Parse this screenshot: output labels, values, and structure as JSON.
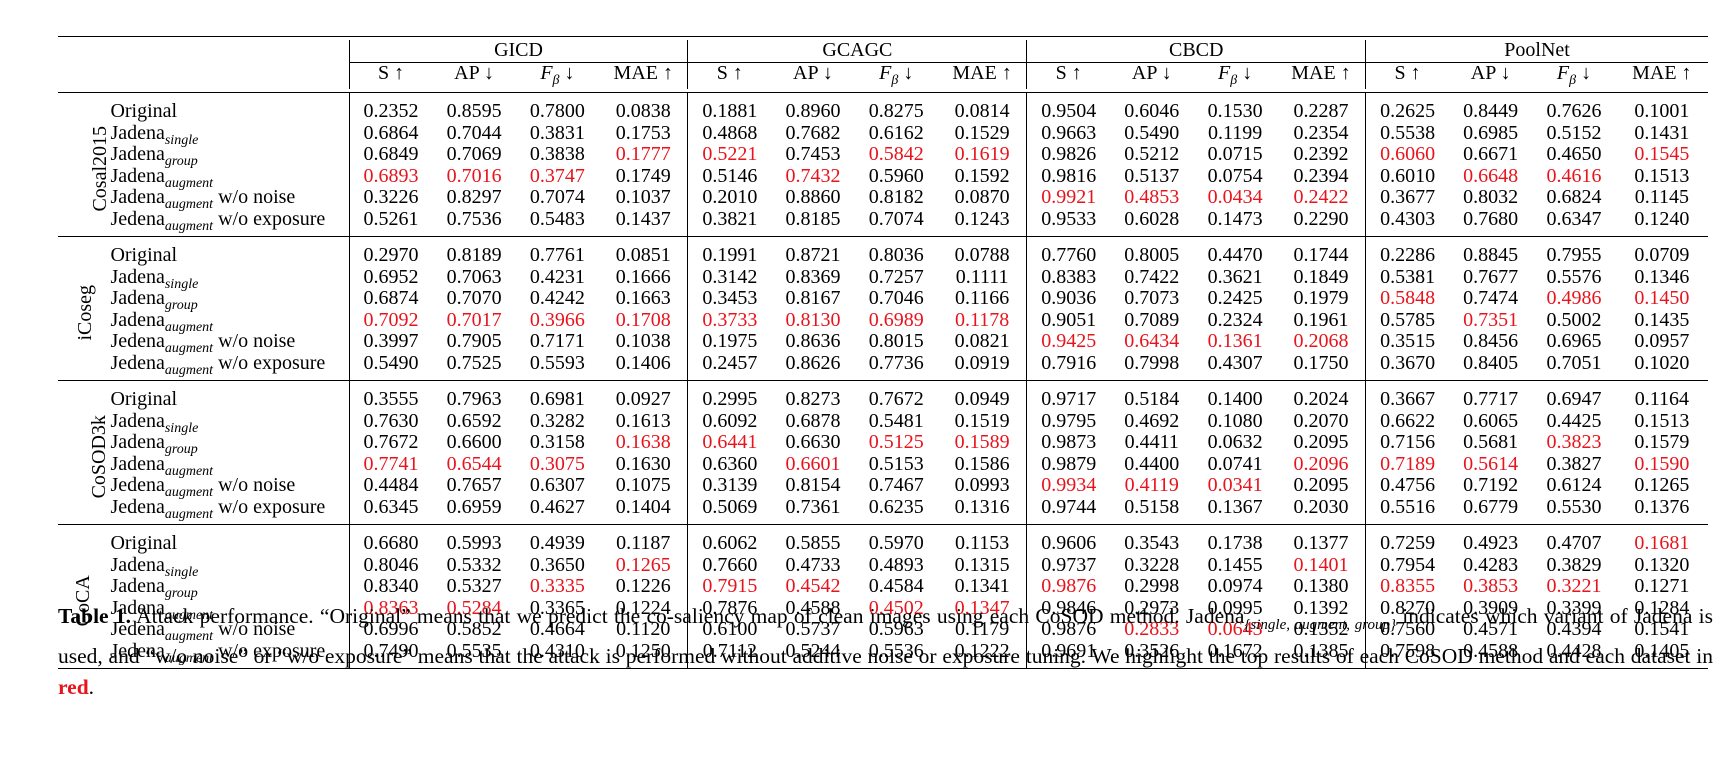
{
  "methods": [
    "GICD",
    "GCAGC",
    "CBCD",
    "PoolNet"
  ],
  "metrics": [
    {
      "name": "S",
      "arrow": "↑"
    },
    {
      "name": "AP",
      "arrow": "↓"
    },
    {
      "name": "F",
      "sub": "β",
      "arrow": "↓"
    },
    {
      "name": "MAE",
      "arrow": "↑"
    }
  ],
  "datasets": [
    {
      "name": "Cosal2015",
      "rows": [
        {
          "base": "Original",
          "sub": "",
          "suffix": "",
          "values": [
            "0.2352",
            "0.8595",
            "0.7800",
            "0.0838",
            "0.1881",
            "0.8960",
            "0.8275",
            "0.0814",
            "0.9504",
            "0.6046",
            "0.1530",
            "0.2287",
            "0.2625",
            "0.8449",
            "0.7626",
            "0.1001"
          ],
          "best": []
        },
        {
          "base": "Jadena",
          "sub": "single",
          "suffix": "",
          "values": [
            "0.6864",
            "0.7044",
            "0.3831",
            "0.1753",
            "0.4868",
            "0.7682",
            "0.6162",
            "0.1529",
            "0.9663",
            "0.5490",
            "0.1199",
            "0.2354",
            "0.5538",
            "0.6985",
            "0.5152",
            "0.1431"
          ],
          "best": []
        },
        {
          "base": "Jadena",
          "sub": "group",
          "suffix": "",
          "values": [
            "0.6849",
            "0.7069",
            "0.3838",
            "0.1777",
            "0.5221",
            "0.7453",
            "0.5842",
            "0.1619",
            "0.9826",
            "0.5212",
            "0.0715",
            "0.2392",
            "0.6060",
            "0.6671",
            "0.4650",
            "0.1545"
          ],
          "best": [
            3,
            4,
            6,
            7,
            12,
            15
          ]
        },
        {
          "base": "Jadena",
          "sub": "augment",
          "suffix": "",
          "values": [
            "0.6893",
            "0.7016",
            "0.3747",
            "0.1749",
            "0.5146",
            "0.7432",
            "0.5960",
            "0.1592",
            "0.9816",
            "0.5137",
            "0.0754",
            "0.2394",
            "0.6010",
            "0.6648",
            "0.4616",
            "0.1513"
          ],
          "best": [
            0,
            1,
            2,
            5,
            13,
            14
          ]
        },
        {
          "base": "Jadena",
          "sub": "augment",
          "suffix": " w/o noise",
          "values": [
            "0.3226",
            "0.8297",
            "0.7074",
            "0.1037",
            "0.2010",
            "0.8860",
            "0.8182",
            "0.0870",
            "0.9921",
            "0.4853",
            "0.0434",
            "0.2422",
            "0.3677",
            "0.8032",
            "0.6824",
            "0.1145"
          ],
          "best": [
            8,
            9,
            10,
            11
          ]
        },
        {
          "base": "Jedena",
          "sub": "augment",
          "suffix": " w/o exposure",
          "values": [
            "0.5261",
            "0.7536",
            "0.5483",
            "0.1437",
            "0.3821",
            "0.8185",
            "0.7074",
            "0.1243",
            "0.9533",
            "0.6028",
            "0.1473",
            "0.2290",
            "0.4303",
            "0.7680",
            "0.6347",
            "0.1240"
          ],
          "best": []
        }
      ]
    },
    {
      "name": "iCoseg",
      "rows": [
        {
          "base": "Original",
          "sub": "",
          "suffix": "",
          "values": [
            "0.2970",
            "0.8189",
            "0.7761",
            "0.0851",
            "0.1991",
            "0.8721",
            "0.8036",
            "0.0788",
            "0.7760",
            "0.8005",
            "0.4470",
            "0.1744",
            "0.2286",
            "0.8845",
            "0.7955",
            "0.0709"
          ],
          "best": []
        },
        {
          "base": "Jadena",
          "sub": "single",
          "suffix": "",
          "values": [
            "0.6952",
            "0.7063",
            "0.4231",
            "0.1666",
            "0.3142",
            "0.8369",
            "0.7257",
            "0.1111",
            "0.8383",
            "0.7422",
            "0.3621",
            "0.1849",
            "0.5381",
            "0.7677",
            "0.5576",
            "0.1346"
          ],
          "best": []
        },
        {
          "base": "Jadena",
          "sub": "group",
          "suffix": "",
          "values": [
            "0.6874",
            "0.7070",
            "0.4242",
            "0.1663",
            "0.3453",
            "0.8167",
            "0.7046",
            "0.1166",
            "0.9036",
            "0.7073",
            "0.2425",
            "0.1979",
            "0.5848",
            "0.7474",
            "0.4986",
            "0.1450"
          ],
          "best": [
            12,
            14,
            15
          ]
        },
        {
          "base": "Jadena",
          "sub": "augment",
          "suffix": "",
          "values": [
            "0.7092",
            "0.7017",
            "0.3966",
            "0.1708",
            "0.3733",
            "0.8130",
            "0.6989",
            "0.1178",
            "0.9051",
            "0.7089",
            "0.2324",
            "0.1961",
            "0.5785",
            "0.7351",
            "0.5002",
            "0.1435"
          ],
          "best": [
            0,
            1,
            2,
            3,
            4,
            5,
            6,
            7,
            13
          ]
        },
        {
          "base": "Jedena",
          "sub": "augment",
          "suffix": " w/o noise",
          "values": [
            "0.3997",
            "0.7905",
            "0.7171",
            "0.1038",
            "0.1975",
            "0.8636",
            "0.8015",
            "0.0821",
            "0.9425",
            "0.6434",
            "0.1361",
            "0.2068",
            "0.3515",
            "0.8456",
            "0.6965",
            "0.0957"
          ],
          "best": [
            8,
            9,
            10,
            11
          ]
        },
        {
          "base": "Jedena",
          "sub": "augment",
          "suffix": " w/o exposure",
          "values": [
            "0.5490",
            "0.7525",
            "0.5593",
            "0.1406",
            "0.2457",
            "0.8626",
            "0.7736",
            "0.0919",
            "0.7916",
            "0.7998",
            "0.4307",
            "0.1750",
            "0.3670",
            "0.8405",
            "0.7051",
            "0.1020"
          ],
          "best": []
        }
      ]
    },
    {
      "name": "CoSOD3k",
      "rows": [
        {
          "base": "Original",
          "sub": "",
          "suffix": "",
          "values": [
            "0.3555",
            "0.7963",
            "0.6981",
            "0.0927",
            "0.2995",
            "0.8273",
            "0.7672",
            "0.0949",
            "0.9717",
            "0.5184",
            "0.1400",
            "0.2024",
            "0.3667",
            "0.7717",
            "0.6947",
            "0.1164"
          ],
          "best": []
        },
        {
          "base": "Jadena",
          "sub": "single",
          "suffix": "",
          "values": [
            "0.7630",
            "0.6592",
            "0.3282",
            "0.1613",
            "0.6092",
            "0.6878",
            "0.5481",
            "0.1519",
            "0.9795",
            "0.4692",
            "0.1080",
            "0.2070",
            "0.6622",
            "0.6065",
            "0.4425",
            "0.1513"
          ],
          "best": []
        },
        {
          "base": "Jadena",
          "sub": "group",
          "suffix": "",
          "values": [
            "0.7672",
            "0.6600",
            "0.3158",
            "0.1638",
            "0.6441",
            "0.6630",
            "0.5125",
            "0.1589",
            "0.9873",
            "0.4411",
            "0.0632",
            "0.2095",
            "0.7156",
            "0.5681",
            "0.3823",
            "0.1579"
          ],
          "best": [
            3,
            4,
            6,
            7,
            14
          ]
        },
        {
          "base": "Jadena",
          "sub": "augment",
          "suffix": "",
          "values": [
            "0.7741",
            "0.6544",
            "0.3075",
            "0.1630",
            "0.6360",
            "0.6601",
            "0.5153",
            "0.1586",
            "0.9879",
            "0.4400",
            "0.0741",
            "0.2096",
            "0.7189",
            "0.5614",
            "0.3827",
            "0.1590"
          ],
          "best": [
            0,
            1,
            2,
            5,
            11,
            12,
            13,
            15
          ]
        },
        {
          "base": "Jedena",
          "sub": "augment",
          "suffix": " w/o noise",
          "values": [
            "0.4484",
            "0.7657",
            "0.6307",
            "0.1075",
            "0.3139",
            "0.8154",
            "0.7467",
            "0.0993",
            "0.9934",
            "0.4119",
            "0.0341",
            "0.2095",
            "0.4756",
            "0.7192",
            "0.6124",
            "0.1265"
          ],
          "best": [
            8,
            9,
            10
          ]
        },
        {
          "base": "Jedena",
          "sub": "augment",
          "suffix": " w/o exposure",
          "values": [
            "0.6345",
            "0.6959",
            "0.4627",
            "0.1404",
            "0.5069",
            "0.7361",
            "0.6235",
            "0.1316",
            "0.9744",
            "0.5158",
            "0.1367",
            "0.2030",
            "0.5516",
            "0.6779",
            "0.5530",
            "0.1376"
          ],
          "best": []
        }
      ]
    },
    {
      "name": "CoCA",
      "rows": [
        {
          "base": "Original",
          "sub": "",
          "suffix": "",
          "values": [
            "0.6680",
            "0.5993",
            "0.4939",
            "0.1187",
            "0.6062",
            "0.5855",
            "0.5970",
            "0.1153",
            "0.9606",
            "0.3543",
            "0.1738",
            "0.1377",
            "0.7259",
            "0.4923",
            "0.4707",
            "0.1681"
          ],
          "best": [
            15
          ]
        },
        {
          "base": "Jadena",
          "sub": "single",
          "suffix": "",
          "values": [
            "0.8046",
            "0.5332",
            "0.3650",
            "0.1265",
            "0.7660",
            "0.4733",
            "0.4893",
            "0.1315",
            "0.9737",
            "0.3228",
            "0.1455",
            "0.1401",
            "0.7954",
            "0.4283",
            "0.3829",
            "0.1320"
          ],
          "best": [
            3,
            11
          ]
        },
        {
          "base": "Jadena",
          "sub": "group",
          "suffix": "",
          "values": [
            "0.8340",
            "0.5327",
            "0.3335",
            "0.1226",
            "0.7915",
            "0.4542",
            "0.4584",
            "0.1341",
            "0.9876",
            "0.2998",
            "0.0974",
            "0.1380",
            "0.8355",
            "0.3853",
            "0.3221",
            "0.1271"
          ],
          "best": [
            2,
            4,
            5,
            8,
            12,
            13,
            14
          ]
        },
        {
          "base": "Jadena",
          "sub": "augment",
          "suffix": "",
          "values": [
            "0.8363",
            "0.5284",
            "0.3365",
            "0.1224",
            "0.7876",
            "0.4588",
            "0.4502",
            "0.1347",
            "0.9846",
            "0.2973",
            "0.0995",
            "0.1392",
            "0.8270",
            "0.3909",
            "0.3399",
            "0.1284"
          ],
          "best": [
            0,
            1,
            6,
            7
          ]
        },
        {
          "base": "Jedena",
          "sub": "augment",
          "suffix": " w/o noise",
          "values": [
            "0.6996",
            "0.5852",
            "0.4664",
            "0.1120",
            "0.6100",
            "0.5737",
            "0.5963",
            "0.1179",
            "0.9876",
            "0.2833",
            "0.0643",
            "0.1352",
            "0.7560",
            "0.4571",
            "0.4394",
            "0.1541"
          ],
          "best": [
            9,
            10
          ]
        },
        {
          "base": "Jedena",
          "sub": "augment",
          "suffix": " w/o exposure",
          "values": [
            "0.7490",
            "0.5535",
            "0.4310",
            "0.1250",
            "0.7112",
            "0.5244",
            "0.5536",
            "0.1222",
            "0.9691",
            "0.3526",
            "0.1672",
            "0.1385",
            "0.7598",
            "0.4588",
            "0.4428",
            "0.1405"
          ],
          "best": []
        }
      ]
    }
  ],
  "caption": {
    "label": "Table 1.",
    "text_1": " Attack performance. “Original” means that we predict the co-saliency map of clean images using each CoSOD method. Jadena",
    "variants": "{single, augment, group}",
    "text_2": " indicates which variant of Jadena is used, and “w/o noise” or “w/o exposure” means that the attack is performed without additive noise or exposure tuning. We highlight the top results of each CoSOD method and each dataset in ",
    "red_word": "red",
    "text_3": "."
  },
  "colors": {
    "highlight": "#e8131b"
  }
}
